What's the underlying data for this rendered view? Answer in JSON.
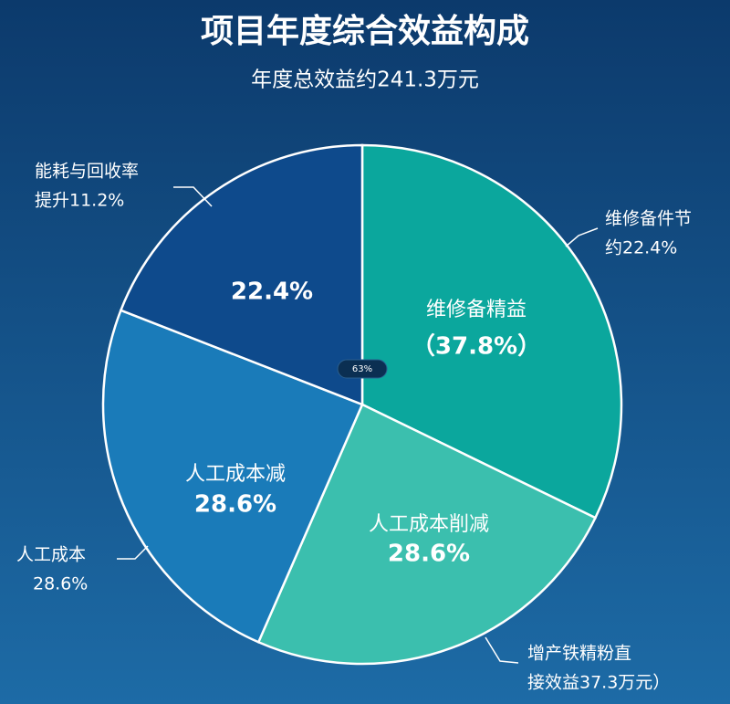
{
  "chart_data": {
    "type": "pie",
    "title": "项目年度综合效益构成",
    "subtitle": "年度总效益约241.3万元",
    "categories": [
      "维修备精益",
      "人工成本削减",
      "人工成本减",
      null
    ],
    "values": [
      37.8,
      28.6,
      28.6,
      22.4
    ],
    "value_labels": [
      "（37.8%）",
      "28.6%",
      "28.6%",
      "22.4%"
    ],
    "colors": [
      "#0ba79d",
      "#3bbfae",
      "#1a7bb9",
      "#0e4a8c"
    ],
    "center_label": "63%",
    "annotations": [
      {
        "lines": [
          "能耗与回收率",
          "提升11.2%"
        ]
      },
      {
        "lines": [
          "维修备件节",
          "约22.4%"
        ]
      },
      {
        "lines": [
          "人工成本",
          "28.6%"
        ]
      },
      {
        "lines": [
          "增产铁精粉直",
          "接效益37.3万元）"
        ]
      }
    ]
  }
}
